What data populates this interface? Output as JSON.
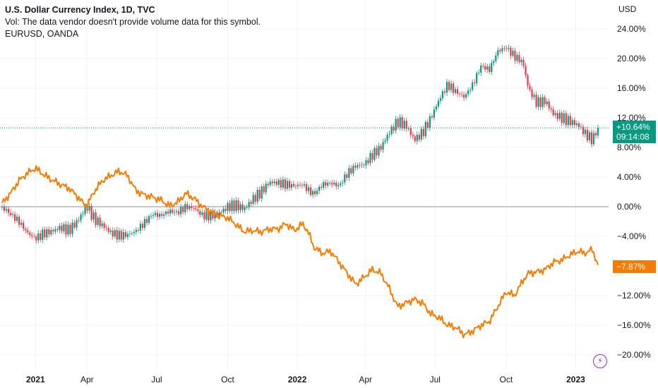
{
  "legend": {
    "title": "U.S. Dollar Currency Index, 1D, TVC",
    "volume_note": "Vol: The data vendor doesn't provide volume data for this symbol.",
    "compare_symbol": "EURUSD, OANDA"
  },
  "axis": {
    "currency_label": "USD",
    "y_ticks": [
      "24.00%",
      "20.00%",
      "16.00%",
      "12.00%",
      "8.00%",
      "4.00%",
      "0.00%",
      "−4.00%",
      "−12.00%",
      "−16.00%",
      "−20.00%"
    ],
    "y_tick_values": [
      24,
      20,
      16,
      12,
      8,
      4,
      0,
      -4,
      -12,
      -16,
      -20
    ],
    "x_ticks": [
      {
        "label": "2021",
        "bold": true,
        "t": 0.06
      },
      {
        "label": "Apr",
        "bold": false,
        "t": 0.245
      },
      {
        "label": "Jul",
        "bold": false,
        "t": 0.495
      },
      {
        "label": "Oct",
        "bold": false,
        "t": 0.75
      },
      {
        "label": "2022",
        "bold": true,
        "t": 1.0
      },
      {
        "label": "Apr",
        "bold": false,
        "t": 1.245
      },
      {
        "label": "Jul",
        "bold": false,
        "t": 1.495
      },
      {
        "label": "Oct",
        "bold": false,
        "t": 1.75
      },
      {
        "label": "2023",
        "bold": true,
        "t": 2.0
      }
    ]
  },
  "badges": {
    "dxy_change": "+10.64%",
    "dxy_countdown": "09:14:08",
    "eur_change": "−7.87%"
  },
  "colors": {
    "dxy_up": "#089981",
    "dxy_down": "#f23645",
    "eurusd_line": "#f57c00",
    "zero_line": "#b2b5be",
    "grid": "#f0f3fa",
    "flash": "#9c27b0"
  },
  "icons": {
    "flash": "lightning-icon"
  },
  "chart_data": {
    "type": "line",
    "ylabel": "USD",
    "y_unit": "percent change",
    "ylim": [
      -20.5,
      25.5
    ],
    "x_unit": "years since start of 2021",
    "xlim": [
      -0.06,
      2.08
    ],
    "grid": true,
    "series": [
      {
        "name": "U.S. Dollar Currency Index, 1D, TVC",
        "style": "candles",
        "last_value": 10.64,
        "points": [
          [
            -0.06,
            0.0
          ],
          [
            -0.03,
            -1.0
          ],
          [
            0.0,
            -2.0
          ],
          [
            0.03,
            -3.5
          ],
          [
            0.06,
            -4.3
          ],
          [
            0.09,
            -3.6
          ],
          [
            0.12,
            -3.3
          ],
          [
            0.15,
            -2.8
          ],
          [
            0.18,
            -3.2
          ],
          [
            0.21,
            -2.0
          ],
          [
            0.23,
            -0.8
          ],
          [
            0.245,
            0.0
          ],
          [
            0.27,
            -1.6
          ],
          [
            0.3,
            -2.5
          ],
          [
            0.33,
            -3.5
          ],
          [
            0.36,
            -3.9
          ],
          [
            0.39,
            -3.8
          ],
          [
            0.42,
            -3.3
          ],
          [
            0.45,
            -2.2
          ],
          [
            0.48,
            -1.0
          ],
          [
            0.51,
            -1.2
          ],
          [
            0.54,
            -0.6
          ],
          [
            0.57,
            -0.8
          ],
          [
            0.6,
            0.0
          ],
          [
            0.63,
            -0.2
          ],
          [
            0.66,
            -1.2
          ],
          [
            0.69,
            -1.2
          ],
          [
            0.72,
            -0.9
          ],
          [
            0.75,
            0.0
          ],
          [
            0.78,
            0.2
          ],
          [
            0.81,
            -0.3
          ],
          [
            0.84,
            1.0
          ],
          [
            0.87,
            2.0
          ],
          [
            0.9,
            3.3
          ],
          [
            0.93,
            3.2
          ],
          [
            0.96,
            3.0
          ],
          [
            0.99,
            2.8
          ],
          [
            1.02,
            3.0
          ],
          [
            1.04,
            2.2
          ],
          [
            1.06,
            1.7
          ],
          [
            1.09,
            3.0
          ],
          [
            1.12,
            3.2
          ],
          [
            1.15,
            2.8
          ],
          [
            1.18,
            4.5
          ],
          [
            1.21,
            5.5
          ],
          [
            1.24,
            5.7
          ],
          [
            1.27,
            7.0
          ],
          [
            1.3,
            8.0
          ],
          [
            1.33,
            10.0
          ],
          [
            1.36,
            11.5
          ],
          [
            1.39,
            11.0
          ],
          [
            1.42,
            9.0
          ],
          [
            1.45,
            10.0
          ],
          [
            1.48,
            12.0
          ],
          [
            1.51,
            14.5
          ],
          [
            1.54,
            16.5
          ],
          [
            1.57,
            15.5
          ],
          [
            1.6,
            14.8
          ],
          [
            1.63,
            16.5
          ],
          [
            1.66,
            19.0
          ],
          [
            1.69,
            18.5
          ],
          [
            1.72,
            21.0
          ],
          [
            1.75,
            21.5
          ],
          [
            1.78,
            20.3
          ],
          [
            1.81,
            19.5
          ],
          [
            1.83,
            16.0
          ],
          [
            1.86,
            14.0
          ],
          [
            1.89,
            14.3
          ],
          [
            1.92,
            12.5
          ],
          [
            1.95,
            12.0
          ],
          [
            1.98,
            11.5
          ],
          [
            2.01,
            11.0
          ],
          [
            2.03,
            10.0
          ],
          [
            2.06,
            9.0
          ],
          [
            2.08,
            10.64
          ]
        ]
      },
      {
        "name": "EURUSD, OANDA",
        "style": "line",
        "last_value": -7.87,
        "points": [
          [
            -0.06,
            0.5
          ],
          [
            -0.03,
            1.8
          ],
          [
            0.0,
            3.5
          ],
          [
            0.03,
            4.5
          ],
          [
            0.06,
            5.2
          ],
          [
            0.09,
            4.3
          ],
          [
            0.12,
            3.6
          ],
          [
            0.15,
            3.0
          ],
          [
            0.18,
            2.5
          ],
          [
            0.21,
            1.4
          ],
          [
            0.23,
            0.5
          ],
          [
            0.245,
            0.2
          ],
          [
            0.27,
            2.0
          ],
          [
            0.3,
            3.5
          ],
          [
            0.33,
            4.2
          ],
          [
            0.36,
            4.8
          ],
          [
            0.39,
            4.2
          ],
          [
            0.42,
            2.2
          ],
          [
            0.45,
            1.6
          ],
          [
            0.48,
            1.3
          ],
          [
            0.51,
            0.9
          ],
          [
            0.54,
            0.1
          ],
          [
            0.57,
            0.6
          ],
          [
            0.6,
            1.8
          ],
          [
            0.63,
            1.1
          ],
          [
            0.66,
            0.0
          ],
          [
            0.69,
            -0.7
          ],
          [
            0.72,
            -1.2
          ],
          [
            0.75,
            -1.5
          ],
          [
            0.78,
            -2.4
          ],
          [
            0.81,
            -3.4
          ],
          [
            0.84,
            -3.2
          ],
          [
            0.87,
            -3.4
          ],
          [
            0.9,
            -3.0
          ],
          [
            0.93,
            -3.0
          ],
          [
            0.96,
            -2.3
          ],
          [
            0.99,
            -3.2
          ],
          [
            1.02,
            -2.3
          ],
          [
            1.04,
            -3.5
          ],
          [
            1.06,
            -5.5
          ],
          [
            1.09,
            -6.3
          ],
          [
            1.12,
            -6.0
          ],
          [
            1.15,
            -7.5
          ],
          [
            1.18,
            -9.0
          ],
          [
            1.21,
            -10.5
          ],
          [
            1.24,
            -9.5
          ],
          [
            1.27,
            -8.5
          ],
          [
            1.3,
            -9.0
          ],
          [
            1.33,
            -11.0
          ],
          [
            1.36,
            -13.5
          ],
          [
            1.39,
            -13.0
          ],
          [
            1.42,
            -12.5
          ],
          [
            1.45,
            -13.0
          ],
          [
            1.48,
            -14.5
          ],
          [
            1.51,
            -15.0
          ],
          [
            1.54,
            -16.0
          ],
          [
            1.57,
            -16.3
          ],
          [
            1.6,
            -17.3
          ],
          [
            1.63,
            -16.8
          ],
          [
            1.66,
            -16.0
          ],
          [
            1.69,
            -15.5
          ],
          [
            1.72,
            -13.5
          ],
          [
            1.75,
            -11.5
          ],
          [
            1.78,
            -12.0
          ],
          [
            1.81,
            -10.0
          ],
          [
            1.83,
            -9.0
          ],
          [
            1.86,
            -8.8
          ],
          [
            1.89,
            -8.5
          ],
          [
            1.92,
            -7.5
          ],
          [
            1.95,
            -7.2
          ],
          [
            1.98,
            -6.5
          ],
          [
            2.01,
            -6.0
          ],
          [
            2.03,
            -6.3
          ],
          [
            2.06,
            -5.8
          ],
          [
            2.08,
            -7.87
          ]
        ]
      }
    ]
  }
}
